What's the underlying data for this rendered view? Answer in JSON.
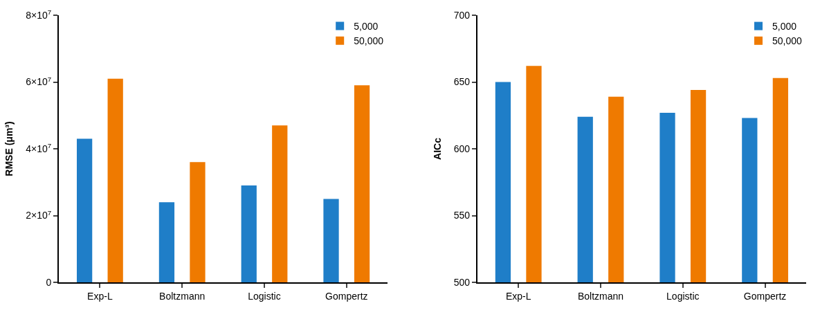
{
  "chart_data": [
    {
      "type": "bar",
      "ylabel": "RMSE (μm³)",
      "categories": [
        "Exp-L",
        "Boltzmann",
        "Logistic",
        "Gompertz"
      ],
      "series": [
        {
          "name": "5,000",
          "color": "#1f7ec8",
          "values": [
            43000000,
            24000000,
            29000000,
            25000000
          ]
        },
        {
          "name": "50,000",
          "color": "#ef7a00",
          "values": [
            61000000,
            36000000,
            47000000,
            59000000
          ]
        }
      ],
      "ylim": [
        0,
        80000000
      ],
      "yticks": [
        0,
        {
          "value": 20000000,
          "label": "2×10$^{7}$"
        },
        {
          "value": 40000000,
          "label": "4×10$^{7}$"
        },
        {
          "value": 60000000,
          "label": "6×10$^{7}$"
        },
        {
          "value": 80000000,
          "label": "8×10$^{7}$"
        }
      ],
      "legend": "top right"
    },
    {
      "type": "bar",
      "ylabel": "AICc",
      "categories": [
        "Exp-L",
        "Boltzmann",
        "Logistic",
        "Gompertz"
      ],
      "series": [
        {
          "name": "5,000",
          "color": "#1f7ec8",
          "values": [
            650,
            624,
            627,
            623
          ]
        },
        {
          "name": "50,000",
          "color": "#ef7a00",
          "values": [
            662,
            639,
            644,
            653
          ]
        }
      ],
      "ylim": [
        500,
        700
      ],
      "yticks": [
        500,
        550,
        600,
        650,
        700
      ],
      "legend": "top right"
    }
  ]
}
